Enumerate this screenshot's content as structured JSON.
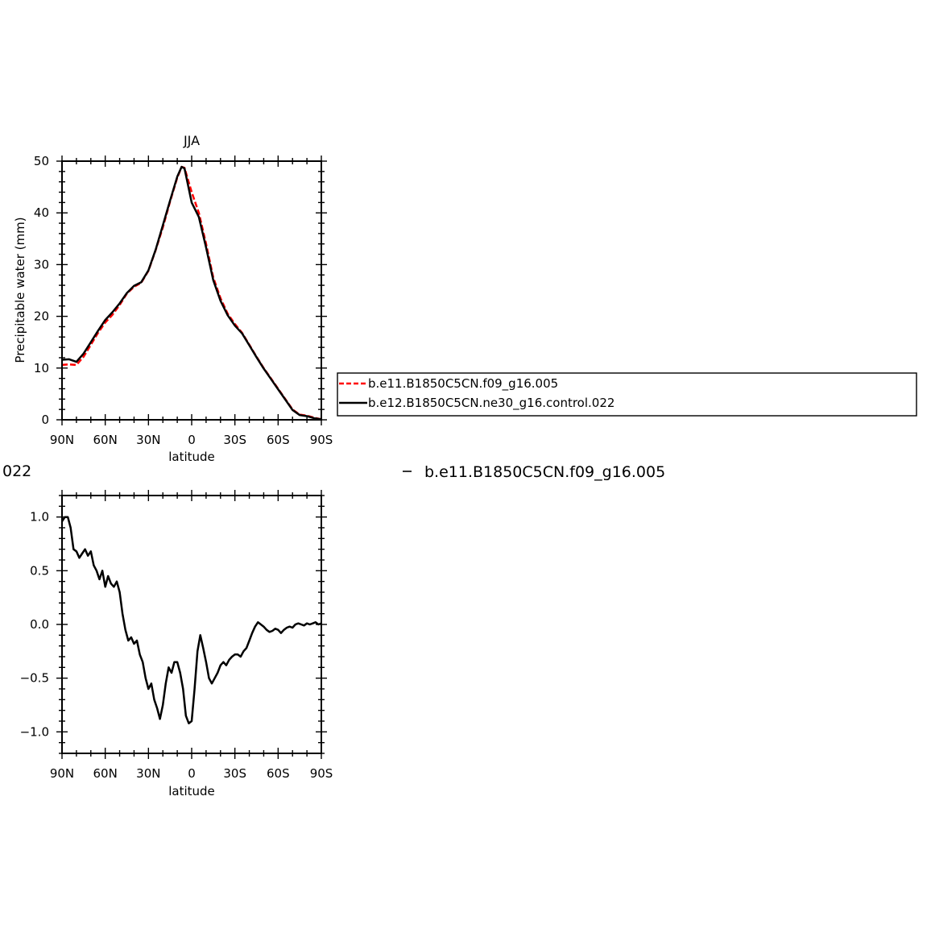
{
  "figure": {
    "top_panel_title": "JJA",
    "bottom_panel_header_fragment": "022",
    "bottom_panel_series_text": "b.e11.B1850C5CN.f09_g16.005",
    "bottom_panel_ylabel_fragment": "Precipitable water (mm)"
  },
  "chart_data": [
    {
      "type": "line",
      "title": "JJA",
      "xlabel": "latitude",
      "ylabel": "Precipitable water (mm)",
      "x_ticks": [
        "90N",
        "60N",
        "30N",
        "0",
        "30S",
        "60S",
        "90S"
      ],
      "xlim": [
        90,
        -90
      ],
      "ylim": [
        0,
        50
      ],
      "y_ticks": [
        0,
        10,
        20,
        30,
        40,
        50
      ],
      "y_tick_labels": [
        "0",
        "10",
        "20",
        "30",
        "40",
        "50"
      ],
      "legend_position": "right",
      "x": [
        90,
        85,
        80,
        75,
        70,
        65,
        60,
        55,
        50,
        45,
        40,
        35,
        30,
        25,
        20,
        15,
        10,
        7,
        5,
        0,
        -5,
        -10,
        -15,
        -20,
        -25,
        -30,
        -35,
        -40,
        -45,
        -50,
        -55,
        -60,
        -65,
        -70,
        -75,
        -80,
        -85,
        -90
      ],
      "series": [
        {
          "name": "b.e11.B1850C5CN.f09_g16.005",
          "color": "#ff0000",
          "dash": "dashed",
          "values": [
            10.6,
            10.7,
            10.6,
            12.2,
            14.5,
            16.8,
            18.8,
            20.3,
            22.2,
            24.4,
            25.7,
            26.5,
            28.8,
            32.8,
            37.2,
            42.2,
            46.8,
            48.9,
            48.7,
            44.0,
            40.0,
            34.0,
            27.5,
            23.5,
            20.5,
            18.5,
            16.8,
            14.5,
            12.2,
            10.0,
            8.0,
            6.0,
            4.0,
            2.0,
            1.0,
            0.8,
            0.4,
            0.1
          ]
        },
        {
          "name": "b.e12.B1850C5CN.ne30_g16.control.022",
          "color": "#000000",
          "dash": "solid",
          "values": [
            11.6,
            11.7,
            11.2,
            12.8,
            15.0,
            17.2,
            19.3,
            20.8,
            22.5,
            24.5,
            25.9,
            26.6,
            28.9,
            32.9,
            37.6,
            42.4,
            47.0,
            48.9,
            48.6,
            42.0,
            39.2,
            33.3,
            27.0,
            23.0,
            20.2,
            18.2,
            16.7,
            14.4,
            12.1,
            9.9,
            7.9,
            5.9,
            3.9,
            1.9,
            0.9,
            0.7,
            0.3,
            0.1
          ]
        }
      ]
    },
    {
      "type": "line",
      "xlabel": "latitude",
      "x_ticks": [
        "90N",
        "60N",
        "30N",
        "0",
        "30S",
        "60S",
        "90S"
      ],
      "xlim": [
        90,
        -90
      ],
      "ylim": [
        -1.2,
        1.2
      ],
      "y_ticks": [
        -1.0,
        -0.5,
        0.0,
        0.5,
        1.0
      ],
      "y_tick_labels": [
        "−1.0",
        "−0.5",
        "0.0",
        "0.5",
        "1.0"
      ],
      "x": [
        90,
        88,
        86,
        84,
        82,
        80,
        78,
        76,
        74,
        72,
        70,
        68,
        66,
        64,
        62,
        60,
        58,
        56,
        54,
        52,
        50,
        48,
        46,
        44,
        42,
        40,
        38,
        36,
        34,
        32,
        30,
        28,
        26,
        24,
        22,
        20,
        18,
        16,
        14,
        12,
        10,
        8,
        6,
        4,
        2,
        0,
        -2,
        -4,
        -6,
        -8,
        -10,
        -12,
        -14,
        -16,
        -18,
        -20,
        -22,
        -24,
        -26,
        -28,
        -30,
        -32,
        -34,
        -36,
        -38,
        -40,
        -42,
        -44,
        -46,
        -48,
        -50,
        -52,
        -54,
        -56,
        -58,
        -60,
        -62,
        -64,
        -66,
        -68,
        -70,
        -72,
        -74,
        -76,
        -78,
        -80,
        -82,
        -84,
        -86,
        -88,
        -90
      ],
      "series": [
        {
          "color": "#000000",
          "values": [
            0.96,
            1.0,
            1.0,
            0.9,
            0.7,
            0.68,
            0.62,
            0.66,
            0.7,
            0.64,
            0.68,
            0.55,
            0.5,
            0.42,
            0.5,
            0.35,
            0.45,
            0.38,
            0.35,
            0.4,
            0.3,
            0.1,
            -0.05,
            -0.15,
            -0.12,
            -0.18,
            -0.15,
            -0.28,
            -0.35,
            -0.5,
            -0.6,
            -0.55,
            -0.7,
            -0.78,
            -0.88,
            -0.75,
            -0.55,
            -0.4,
            -0.45,
            -0.35,
            -0.35,
            -0.45,
            -0.6,
            -0.85,
            -0.92,
            -0.9,
            -0.6,
            -0.25,
            -0.1,
            -0.22,
            -0.35,
            -0.5,
            -0.55,
            -0.5,
            -0.45,
            -0.38,
            -0.35,
            -0.38,
            -0.33,
            -0.3,
            -0.28,
            -0.28,
            -0.3,
            -0.25,
            -0.22,
            -0.15,
            -0.08,
            -0.02,
            0.02,
            0.0,
            -0.02,
            -0.05,
            -0.07,
            -0.06,
            -0.04,
            -0.05,
            -0.08,
            -0.05,
            -0.03,
            -0.02,
            -0.03,
            0.0,
            0.01,
            0.0,
            -0.01,
            0.01,
            0.0,
            0.01,
            0.02,
            0.0,
            0.01
          ]
        }
      ]
    }
  ]
}
